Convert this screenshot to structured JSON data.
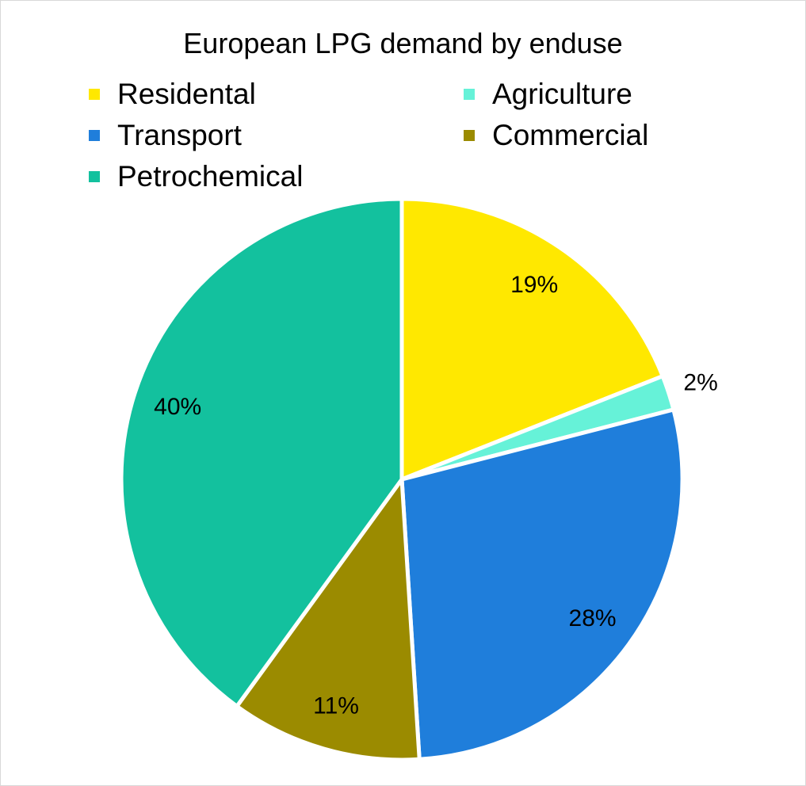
{
  "chart_data": {
    "type": "pie",
    "title": "European LPG demand by enduse",
    "legend_placement": "top",
    "start_angle": "12 o'clock, clockwise",
    "slices": [
      {
        "label": "Residental",
        "value": 19,
        "display": "19%",
        "color": "#FFE800"
      },
      {
        "label": "Agriculture",
        "value": 2,
        "display": "2%",
        "color": "#66F2D8"
      },
      {
        "label": "Transport",
        "value": 28,
        "display": "28%",
        "color": "#1F7EDB"
      },
      {
        "label": "Commercial",
        "value": 11,
        "display": "11%",
        "color": "#9B8B00"
      },
      {
        "label": "Petrochemical",
        "value": 40,
        "display": "40%",
        "color": "#13C19E"
      }
    ]
  }
}
